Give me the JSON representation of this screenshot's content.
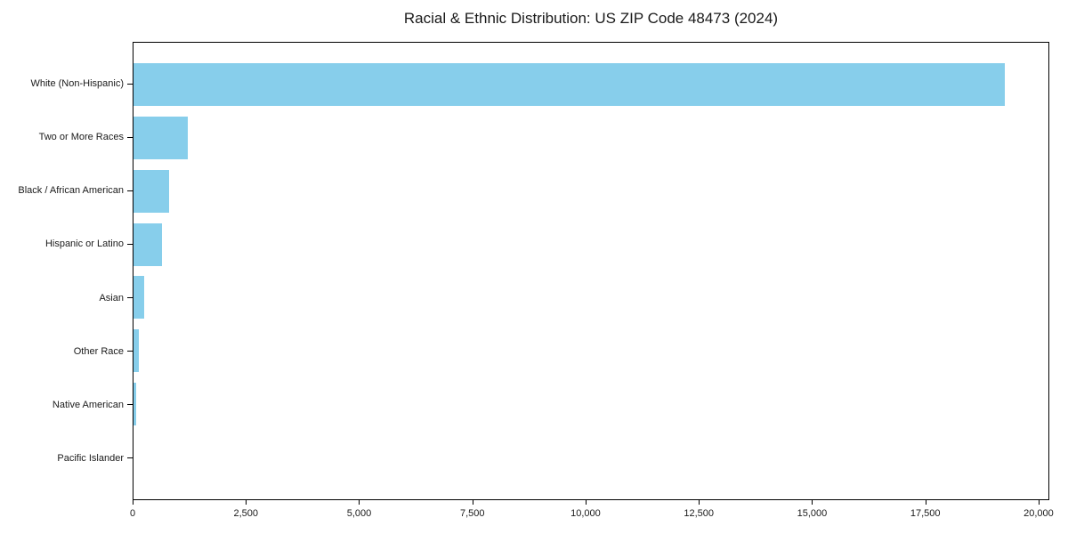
{
  "page": {
    "background": "#ffffff"
  },
  "chart_data": {
    "type": "bar",
    "orientation": "horizontal",
    "title": "Racial & Ethnic Distribution: US ZIP Code 48473 (2024)",
    "categories": [
      "White (Non-Hispanic)",
      "Two or More Races",
      "Black / African American",
      "Hispanic or Latino",
      "Asian",
      "Other Race",
      "Native American",
      "Pacific Islander"
    ],
    "values": [
      19270,
      1200,
      780,
      630,
      240,
      110,
      60,
      0
    ],
    "xlabel": "",
    "ylabel": "",
    "xlim": [
      0,
      20237
    ],
    "x_ticks": [
      0,
      2500,
      5000,
      7500,
      10000,
      12500,
      15000,
      17500,
      20000
    ],
    "x_tick_labels": [
      "0",
      "2,500",
      "5,000",
      "7,500",
      "10,000",
      "12,500",
      "15,000",
      "17,500",
      "20,000"
    ],
    "bar_color": "#87CEEB",
    "axis_color": "#000000",
    "text_color": "#1a1a1a",
    "grid": false,
    "legend": null,
    "bar_height_frac": 0.8
  }
}
